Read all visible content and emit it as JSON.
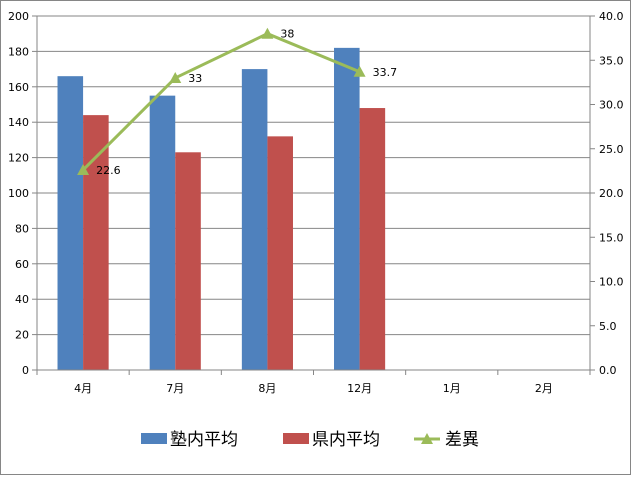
{
  "chart_data": {
    "type": "bar",
    "categories": [
      "4月",
      "7月",
      "8月",
      "12月",
      "1月",
      "2月"
    ],
    "series": [
      {
        "name": "塾内平均",
        "kind": "bar",
        "axis": "left",
        "color": "#4F81BD",
        "values": [
          166,
          155,
          170,
          182,
          null,
          null
        ]
      },
      {
        "name": "県内平均",
        "kind": "bar",
        "axis": "left",
        "color": "#C0504D",
        "values": [
          144,
          123,
          132,
          148,
          null,
          null
        ]
      },
      {
        "name": "差異",
        "kind": "line",
        "axis": "right",
        "color": "#9BBB59",
        "marker": "triangle",
        "values": [
          22.6,
          33,
          38,
          33.7,
          null,
          null
        ]
      }
    ],
    "data_labels": [
      "22.6",
      "33",
      "38",
      "33.7"
    ],
    "y_left": {
      "min": 0,
      "max": 200,
      "step": 20,
      "ticks": [
        "0",
        "20",
        "40",
        "60",
        "80",
        "100",
        "120",
        "140",
        "160",
        "180",
        "200"
      ]
    },
    "y_right": {
      "min": 0,
      "max": 40,
      "step": 5,
      "ticks": [
        "0.0",
        "5.0",
        "10.0",
        "15.0",
        "20.0",
        "25.0",
        "30.0",
        "35.0",
        "40.0"
      ]
    },
    "grid": "horizontal",
    "legend_position": "bottom"
  }
}
